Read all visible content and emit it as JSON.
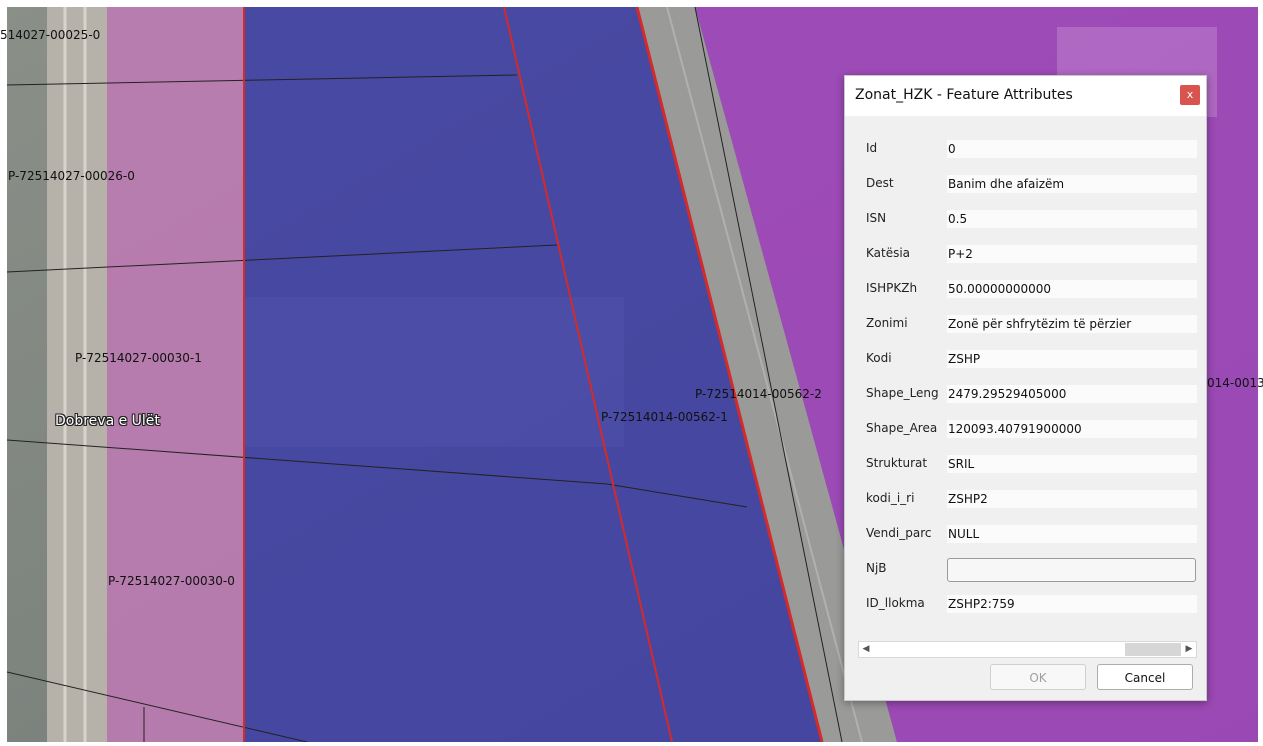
{
  "map": {
    "parcel_labels": [
      "514027-00025-0",
      "P-72514027-00026-0",
      "P-72514027-00030-1",
      "P-72514027-00030-0",
      "P-72514014-00562-2",
      "P-72514014-00562-1",
      "014-0013"
    ],
    "place_label": "Dobreva e Ulët"
  },
  "dialog": {
    "title": "Zonat_HZK - Feature Attributes",
    "close_label": "x",
    "fields": [
      {
        "name": "Id",
        "value": "0"
      },
      {
        "name": "Dest",
        "value": "Banim dhe afaizëm"
      },
      {
        "name": "ISN",
        "value": "0.5"
      },
      {
        "name": "Katësia",
        "value": "P+2"
      },
      {
        "name": "ISHPKZh",
        "value": "50.00000000000"
      },
      {
        "name": "Zonimi",
        "value": "Zonë për shfrytëzim të përzier"
      },
      {
        "name": "Kodi",
        "value": "ZSHP"
      },
      {
        "name": "Shape_Leng",
        "value": "2479.29529405000"
      },
      {
        "name": "Shape_Area",
        "value": "120093.40791900000"
      },
      {
        "name": "Strukturat",
        "value": "SRIL"
      },
      {
        "name": "kodi_i_ri",
        "value": "ZSHP2"
      },
      {
        "name": "Vendi_parc",
        "value": "NULL"
      },
      {
        "name": "NjB",
        "value": ""
      },
      {
        "name": "ID_llokma",
        "value": "ZSHP2:759"
      }
    ],
    "ok_label": "OK",
    "cancel_label": "Cancel"
  },
  "icons": {
    "scroll_left": "arrow-left-icon",
    "scroll_right": "arrow-right-icon"
  },
  "colors": {
    "parcel_boundary": "#d42a2a",
    "zone_blue_overlay": "#3a3aa8",
    "zone_purple_overlay": "#a040c0",
    "zone_pink_overlay": "#c87ab8",
    "close_button": "#d9534f"
  }
}
